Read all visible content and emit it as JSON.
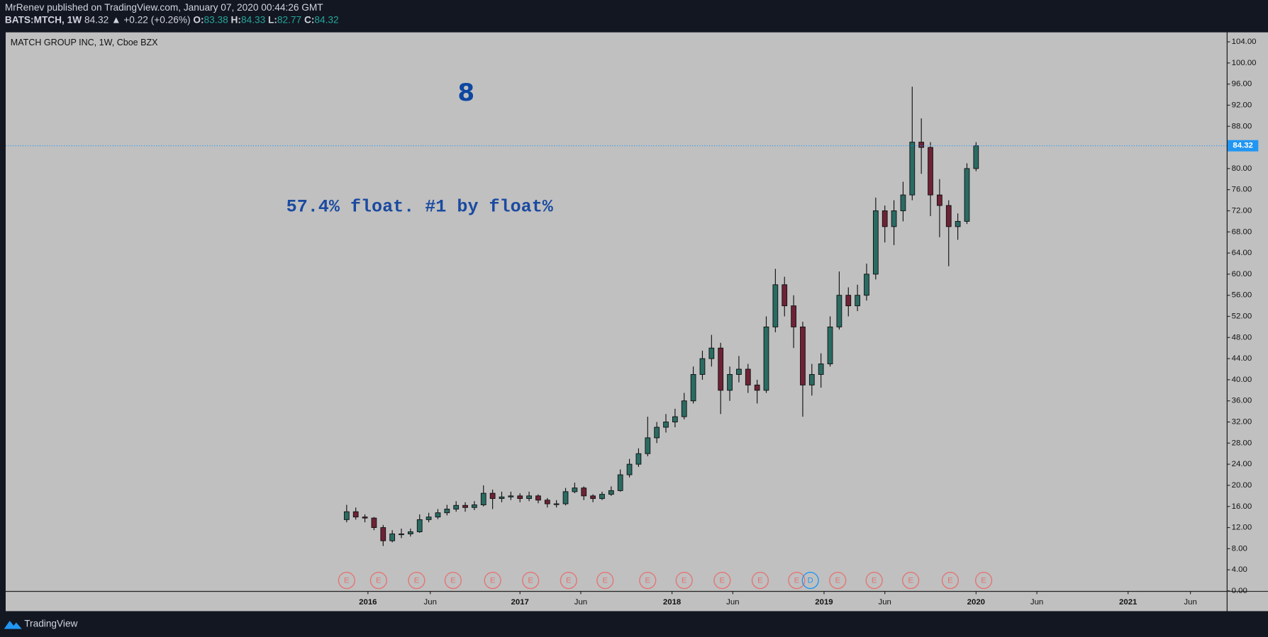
{
  "header": {
    "publisher": "MrRenev published on TradingView.com, January 07, 2020 00:44:26 GMT",
    "symbol": "BATS:MTCH, 1W",
    "last": "84.32",
    "change": "▲ +0.22 (+0.26%)",
    "o_label": "O:",
    "o": "83.38",
    "h_label": "H:",
    "h": "84.33",
    "l_label": "L:",
    "l": "82.77",
    "c_label": "C:",
    "c": "84.32"
  },
  "footer": {
    "brand": "TradingView"
  },
  "chart_data": {
    "type": "candlestick",
    "title": "MATCH GROUP INC, 1W, Cboe BZX",
    "annotations": [
      "8",
      "57.4% float. #1 by float%"
    ],
    "up_color": "#2a6b62",
    "down_color": "#6e2236",
    "wick_color": "#111111",
    "x": [
      2015.86,
      2015.92,
      2015.98,
      2016.04,
      2016.1,
      2016.16,
      2016.22,
      2016.28,
      2016.34,
      2016.4,
      2016.46,
      2016.52,
      2016.58,
      2016.64,
      2016.7,
      2016.76,
      2016.82,
      2016.88,
      2016.94,
      2017.0,
      2017.06,
      2017.12,
      2017.18,
      2017.24,
      2017.3,
      2017.36,
      2017.42,
      2017.48,
      2017.54,
      2017.6,
      2017.66,
      2017.72,
      2017.78,
      2017.84,
      2017.9,
      2017.96,
      2018.02,
      2018.08,
      2018.14,
      2018.2,
      2018.26,
      2018.32,
      2018.38,
      2018.44,
      2018.5,
      2018.56,
      2018.62,
      2018.68,
      2018.74,
      2018.8,
      2018.86,
      2018.92,
      2018.98,
      2019.04,
      2019.1,
      2019.16,
      2019.22,
      2019.28,
      2019.34,
      2019.4,
      2019.46,
      2019.52,
      2019.58,
      2019.64,
      2019.7,
      2019.76,
      2019.82,
      2019.88,
      2019.94,
      2020.0
    ],
    "open": [
      13.5,
      15,
      14,
      13.8,
      12,
      9.5,
      10.8,
      10.8,
      11.2,
      13.5,
      14,
      14.8,
      15.5,
      16.2,
      15.8,
      16.3,
      18.5,
      17.5,
      17.8,
      18,
      17.5,
      18,
      17.2,
      16.5,
      16.5,
      18.8,
      19.5,
      18,
      17.5,
      18.3,
      19,
      22,
      24,
      26,
      29,
      31,
      32,
      33,
      36,
      41,
      44,
      46,
      38,
      41,
      42,
      39,
      38,
      50,
      58,
      54,
      50,
      39,
      41,
      43,
      50,
      56,
      54,
      56,
      60,
      72,
      69,
      72,
      75,
      85,
      84,
      75,
      73,
      69,
      70,
      80
    ],
    "high": [
      16.3,
      15.8,
      14.5,
      14,
      12.5,
      11.5,
      11.8,
      11.8,
      14.5,
      14.8,
      15.5,
      16.3,
      17,
      16.8,
      17,
      20,
      19.2,
      18.8,
      18.8,
      18.5,
      18.8,
      18.3,
      17.6,
      17.2,
      19.5,
      20.5,
      19.8,
      18.3,
      18.8,
      19.8,
      23,
      25,
      27,
      33,
      32,
      33.5,
      34.5,
      37.5,
      42.5,
      45.5,
      48.5,
      47,
      42.5,
      44.5,
      43,
      40,
      52,
      61,
      59.5,
      56,
      51,
      43,
      45,
      52,
      60.5,
      57.5,
      58,
      62,
      74.5,
      73,
      74,
      77.5,
      95.5,
      89.5,
      85,
      78,
      74,
      71.5,
      81,
      85
    ],
    "low": [
      13,
      13.5,
      13,
      11.5,
      8.5,
      9.2,
      10,
      10.3,
      11,
      13,
      13.6,
      14.3,
      15,
      15,
      15.3,
      16,
      15.5,
      16.8,
      17.2,
      16.8,
      17,
      16.6,
      15.8,
      15.8,
      16.2,
      18.5,
      17.2,
      16.8,
      17.2,
      18,
      18.8,
      21.5,
      23.5,
      25.5,
      28,
      30,
      31,
      32.5,
      35.5,
      40,
      42.5,
      33.5,
      36,
      39.5,
      37.5,
      35.5,
      37.5,
      49,
      52,
      46,
      33,
      37,
      38.5,
      42.5,
      49.5,
      52,
      53,
      55,
      59,
      66,
      65.5,
      70,
      74,
      79,
      71,
      67,
      61.5,
      66.5,
      69.5,
      79.5
    ],
    "close": [
      15,
      14,
      13.8,
      12,
      9.5,
      10.8,
      10.8,
      11.2,
      13.5,
      14,
      14.8,
      15.5,
      16.2,
      15.8,
      16.3,
      18.5,
      17.5,
      17.8,
      18,
      17.5,
      18,
      17.2,
      16.5,
      16.5,
      18.8,
      19.5,
      18,
      17.5,
      18.3,
      19,
      22,
      24,
      26,
      29,
      31,
      32,
      33,
      36,
      41,
      44,
      46,
      38,
      41,
      42,
      39,
      38,
      50,
      58,
      54,
      50,
      39,
      41,
      43,
      50,
      56,
      54,
      56,
      60,
      72,
      69,
      72,
      75,
      85,
      84,
      75,
      73,
      69,
      70,
      80,
      84.32
    ],
    "xlim": [
      2013.617,
      2021.649
    ],
    "xticks": [
      {
        "value": 2016,
        "label": "2016"
      },
      {
        "value": 2016.41,
        "label": "Jun"
      },
      {
        "value": 2017,
        "label": "2017"
      },
      {
        "value": 2017.4,
        "label": "Jun"
      },
      {
        "value": 2018,
        "label": "2018"
      },
      {
        "value": 2018.4,
        "label": "Jun"
      },
      {
        "value": 2019,
        "label": "2019"
      },
      {
        "value": 2019.4,
        "label": "Jun"
      },
      {
        "value": 2020,
        "label": "2020"
      },
      {
        "value": 2020.4,
        "label": "Jun"
      },
      {
        "value": 2021,
        "label": "2021"
      },
      {
        "value": 2021.41,
        "label": "Jun"
      }
    ],
    "ylim": [
      0,
      105.8
    ],
    "yticks": [
      {
        "value": 0,
        "label": "0.00"
      },
      {
        "value": 4,
        "label": "4.00"
      },
      {
        "value": 8,
        "label": "8.00"
      },
      {
        "value": 12,
        "label": "12.00"
      },
      {
        "value": 16,
        "label": "16.00"
      },
      {
        "value": 20,
        "label": "20.00"
      },
      {
        "value": 24,
        "label": "24.00"
      },
      {
        "value": 28,
        "label": "28.00"
      },
      {
        "value": 32,
        "label": "32.00"
      },
      {
        "value": 36,
        "label": "36.00"
      },
      {
        "value": 40,
        "label": "40.00"
      },
      {
        "value": 44,
        "label": "44.00"
      },
      {
        "value": 48,
        "label": "48.00"
      },
      {
        "value": 52,
        "label": "52.00"
      },
      {
        "value": 56,
        "label": "56.00"
      },
      {
        "value": 60,
        "label": "60.00"
      },
      {
        "value": 64,
        "label": "64.00"
      },
      {
        "value": 68,
        "label": "68.00"
      },
      {
        "value": 72,
        "label": "72.00"
      },
      {
        "value": 76,
        "label": "76.00"
      },
      {
        "value": 80,
        "label": "80.00"
      },
      {
        "value": 84,
        "label": "84.00"
      },
      {
        "value": 88,
        "label": "88.00"
      },
      {
        "value": 92,
        "label": "92.00"
      },
      {
        "value": 96,
        "label": "96.00"
      },
      {
        "value": 100,
        "label": "100.00"
      },
      {
        "value": 104,
        "label": "104.00"
      }
    ],
    "last_price": {
      "value": 84.32,
      "label": "84.32",
      "color": "#2196f3"
    },
    "events": [
      {
        "x": 2015.86,
        "label": "E"
      },
      {
        "x": 2016.07,
        "label": "E"
      },
      {
        "x": 2016.32,
        "label": "E"
      },
      {
        "x": 2016.56,
        "label": "E"
      },
      {
        "x": 2016.82,
        "label": "E"
      },
      {
        "x": 2017.07,
        "label": "E"
      },
      {
        "x": 2017.32,
        "label": "E"
      },
      {
        "x": 2017.56,
        "label": "E"
      },
      {
        "x": 2017.84,
        "label": "E"
      },
      {
        "x": 2018.08,
        "label": "E"
      },
      {
        "x": 2018.33,
        "label": "E"
      },
      {
        "x": 2018.58,
        "label": "E"
      },
      {
        "x": 2018.82,
        "label": "E"
      },
      {
        "x": 2018.91,
        "label": "D"
      },
      {
        "x": 2019.09,
        "label": "E"
      },
      {
        "x": 2019.33,
        "label": "E"
      },
      {
        "x": 2019.57,
        "label": "E"
      },
      {
        "x": 2019.83,
        "label": "E"
      },
      {
        "x": 2020.05,
        "label": "E"
      }
    ]
  }
}
